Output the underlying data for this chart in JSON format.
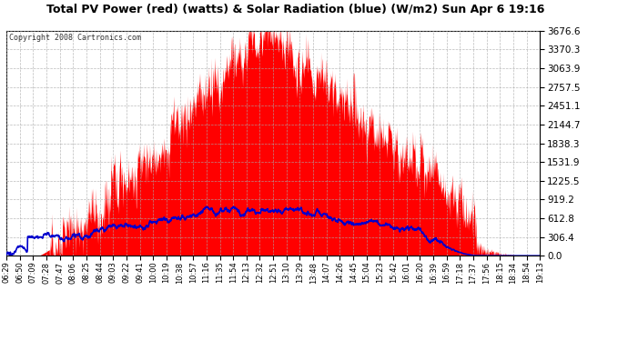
{
  "title": "Total PV Power (red) (watts) & Solar Radiation (blue) (W/m2) Sun Apr 6 19:16",
  "copyright": "Copyright 2008 Cartronics.com",
  "background_color": "#ffffff",
  "plot_bg_color": "#ffffff",
  "grid_color": "#aaaaaa",
  "red_fill_color": "#ff0000",
  "blue_line_color": "#0000cc",
  "ymax": 3676.6,
  "ymin": 0.0,
  "yticks": [
    0.0,
    306.4,
    612.8,
    919.2,
    1225.5,
    1531.9,
    1838.3,
    2144.7,
    2451.1,
    2757.5,
    3063.9,
    3370.3,
    3676.6
  ],
  "xtick_labels": [
    "06:29",
    "06:50",
    "07:09",
    "07:28",
    "07:47",
    "08:06",
    "08:25",
    "08:44",
    "09:03",
    "09:22",
    "09:41",
    "10:00",
    "10:19",
    "10:38",
    "10:57",
    "11:16",
    "11:35",
    "11:54",
    "12:13",
    "12:32",
    "12:51",
    "13:10",
    "13:29",
    "13:48",
    "14:07",
    "14:26",
    "14:45",
    "15:04",
    "15:23",
    "15:42",
    "16:01",
    "16:20",
    "16:39",
    "16:59",
    "17:18",
    "17:37",
    "17:56",
    "18:15",
    "18:34",
    "18:54",
    "19:13"
  ],
  "figsize": [
    6.9,
    3.75
  ],
  "dpi": 100
}
